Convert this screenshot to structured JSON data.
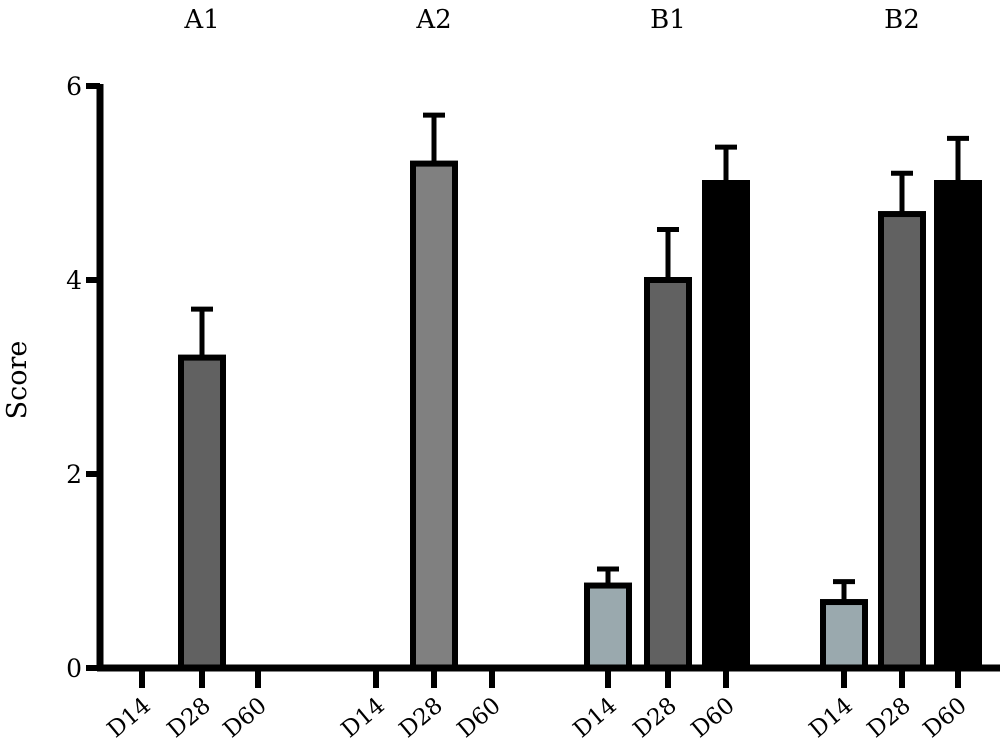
{
  "chart_data": {
    "type": "bar",
    "ylabel": "Score",
    "xlabel": "",
    "ylim": [
      0,
      6
    ],
    "yticks": [
      0,
      2,
      4,
      6
    ],
    "grid": false,
    "legend": "none",
    "groups": [
      {
        "name": "A1",
        "bars": [
          {
            "category": "D14",
            "value": 0,
            "error": 0,
            "color": "#aab7ba"
          },
          {
            "category": "D28",
            "value": 3.2,
            "error": 0.5,
            "color": "#616161"
          },
          {
            "category": "D60",
            "value": 0,
            "error": 0,
            "color": "#000000"
          }
        ]
      },
      {
        "name": "A2",
        "bars": [
          {
            "category": "D14",
            "value": 0,
            "error": 0,
            "color": "#aab7ba"
          },
          {
            "category": "D28",
            "value": 5.2,
            "error": 0.5,
            "color": "#808080"
          },
          {
            "category": "D60",
            "value": 0,
            "error": 0,
            "color": "#000000"
          }
        ]
      },
      {
        "name": "B1",
        "bars": [
          {
            "category": "D14",
            "value": 0.85,
            "error": 0.17,
            "color": "#9aa9ae"
          },
          {
            "category": "D28",
            "value": 4.0,
            "error": 0.52,
            "color": "#616161"
          },
          {
            "category": "D60",
            "value": 5.0,
            "error": 0.37,
            "color": "#000000"
          }
        ]
      },
      {
        "name": "B2",
        "bars": [
          {
            "category": "D14",
            "value": 0.68,
            "error": 0.21,
            "color": "#9aa9ae"
          },
          {
            "category": "D28",
            "value": 4.68,
            "error": 0.42,
            "color": "#616161"
          },
          {
            "category": "D60",
            "value": 5.0,
            "error": 0.46,
            "color": "#000000"
          }
        ]
      }
    ]
  }
}
